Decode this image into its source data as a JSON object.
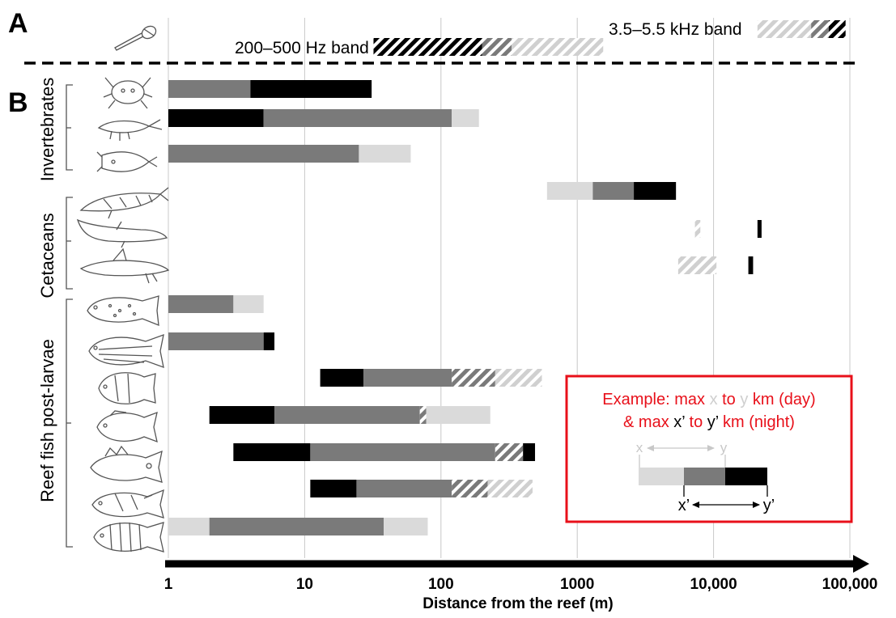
{
  "panel_a_label": "A",
  "panel_b_label": "B",
  "colors": {
    "day_far": "#dadada",
    "mid": "#7a7a7a",
    "night": "#000000",
    "example_border": "#e8101a",
    "grid": "#c8c8c8"
  },
  "icons": {
    "microphone": "microphone-icon",
    "invertebrates": [
      "crab-icon",
      "shrimp-icon",
      "squid-icon"
    ],
    "cetaceans": [
      "whale-icon",
      "dolphin-icon",
      "dolphin-calf-icon"
    ],
    "reef_fish": [
      "grouper-icon",
      "snapper-icon",
      "butterflyfish-icon",
      "damselfish-icon",
      "squirrelfish-icon",
      "wrasse-icon",
      "sergeant-major-icon"
    ]
  },
  "legend": {
    "low_band": "200–500  Hz band",
    "high_band": "3.5–5.5  kHz band"
  },
  "groups": [
    "Invertebrates",
    "Cetaceans",
    "Reef fish post-larvae"
  ],
  "example": {
    "line1_prefix": "Example:  max ",
    "x": "x",
    "to": " to ",
    "y": "y",
    "line1_suffix": " km (day)",
    "line2_prefix": "& max ",
    "xp": "x’",
    "to2": " to ",
    "yp": "y’",
    "line2_suffix": " km (night)",
    "bar_x": "x",
    "bar_y": "y",
    "bar_xp": "x’",
    "bar_yp": "y’"
  },
  "chart_data": {
    "type": "bar",
    "orientation": "horizontal",
    "scale": "log",
    "xlabel": "Distance from the reef (m)",
    "xlim": [
      1,
      100000
    ],
    "xticks": [
      1,
      10,
      100,
      1000,
      10000,
      100000
    ],
    "xtick_labels": [
      "1",
      "10",
      "100",
      "1000",
      "10,000",
      "100,000"
    ],
    "legend_bars": {
      "low_band": [
        {
          "from": 32,
          "to": 200,
          "color": "night",
          "hatched": true
        },
        {
          "from": 200,
          "to": 330,
          "color": "mid",
          "hatched": true
        },
        {
          "from": 330,
          "to": 1550,
          "color": "day_far",
          "hatched": true
        }
      ],
      "high_band": [
        {
          "from": 21000,
          "to": 52000,
          "color": "day_far",
          "hatched": true
        },
        {
          "from": 52000,
          "to": 70000,
          "color": "mid",
          "hatched": true
        },
        {
          "from": 70000,
          "to": 93000,
          "color": "night",
          "hatched": true
        }
      ]
    },
    "rows": [
      {
        "group": "Invertebrates",
        "segments": [
          {
            "from": 1,
            "to": 4,
            "color": "mid"
          },
          {
            "from": 4,
            "to": 31,
            "color": "night"
          }
        ]
      },
      {
        "group": "Invertebrates",
        "segments": [
          {
            "from": 1,
            "to": 5,
            "color": "night"
          },
          {
            "from": 5,
            "to": 120,
            "color": "mid"
          },
          {
            "from": 120,
            "to": 190,
            "color": "day_far"
          }
        ]
      },
      {
        "group": "Invertebrates",
        "segments": [
          {
            "from": 1,
            "to": 25,
            "color": "mid"
          },
          {
            "from": 25,
            "to": 60,
            "color": "day_far"
          }
        ]
      },
      {
        "group": "Cetaceans",
        "segments": [
          {
            "from": 600,
            "to": 1300,
            "color": "day_far"
          },
          {
            "from": 1300,
            "to": 2600,
            "color": "mid"
          },
          {
            "from": 2600,
            "to": 5300,
            "color": "night"
          }
        ]
      },
      {
        "group": "Cetaceans",
        "segments": [
          {
            "from": 7300,
            "to": 8000,
            "color": "day_far",
            "hatched": true
          },
          {
            "from": 21000,
            "to": 22500,
            "color": "night"
          }
        ]
      },
      {
        "group": "Cetaceans",
        "segments": [
          {
            "from": 5500,
            "to": 10500,
            "color": "day_far",
            "hatched": true
          },
          {
            "from": 18000,
            "to": 19500,
            "color": "night"
          }
        ]
      },
      {
        "group": "Reef fish post-larvae",
        "segments": [
          {
            "from": 1,
            "to": 3,
            "color": "mid"
          },
          {
            "from": 3,
            "to": 5,
            "color": "day_far"
          }
        ]
      },
      {
        "group": "Reef fish post-larvae",
        "segments": [
          {
            "from": 1,
            "to": 5,
            "color": "mid"
          },
          {
            "from": 5,
            "to": 6,
            "color": "night"
          }
        ]
      },
      {
        "group": "Reef fish post-larvae",
        "segments": [
          {
            "from": 13,
            "to": 27,
            "color": "night"
          },
          {
            "from": 27,
            "to": 120,
            "color": "mid"
          },
          {
            "from": 120,
            "to": 250,
            "color": "mid",
            "hatched": true
          },
          {
            "from": 250,
            "to": 550,
            "color": "day_far",
            "hatched": true
          }
        ]
      },
      {
        "group": "Reef fish post-larvae",
        "segments": [
          {
            "from": 2,
            "to": 6,
            "color": "night"
          },
          {
            "from": 6,
            "to": 70,
            "color": "mid"
          },
          {
            "from": 70,
            "to": 78,
            "color": "mid",
            "hatched": true
          },
          {
            "from": 78,
            "to": 230,
            "color": "day_far"
          }
        ]
      },
      {
        "group": "Reef fish post-larvae",
        "segments": [
          {
            "from": 3,
            "to": 11,
            "color": "night"
          },
          {
            "from": 11,
            "to": 250,
            "color": "mid"
          },
          {
            "from": 250,
            "to": 400,
            "color": "mid",
            "hatched": true
          },
          {
            "from": 400,
            "to": 490,
            "color": "night"
          }
        ]
      },
      {
        "group": "Reef fish post-larvae",
        "segments": [
          {
            "from": 11,
            "to": 24,
            "color": "night"
          },
          {
            "from": 24,
            "to": 120,
            "color": "mid"
          },
          {
            "from": 120,
            "to": 220,
            "color": "mid",
            "hatched": true
          },
          {
            "from": 220,
            "to": 470,
            "color": "day_far",
            "hatched": true
          }
        ]
      },
      {
        "group": "Reef fish post-larvae",
        "segments": [
          {
            "from": 1,
            "to": 2,
            "color": "day_far"
          },
          {
            "from": 2,
            "to": 38,
            "color": "mid"
          },
          {
            "from": 38,
            "to": 80,
            "color": "day_far"
          }
        ]
      }
    ]
  }
}
